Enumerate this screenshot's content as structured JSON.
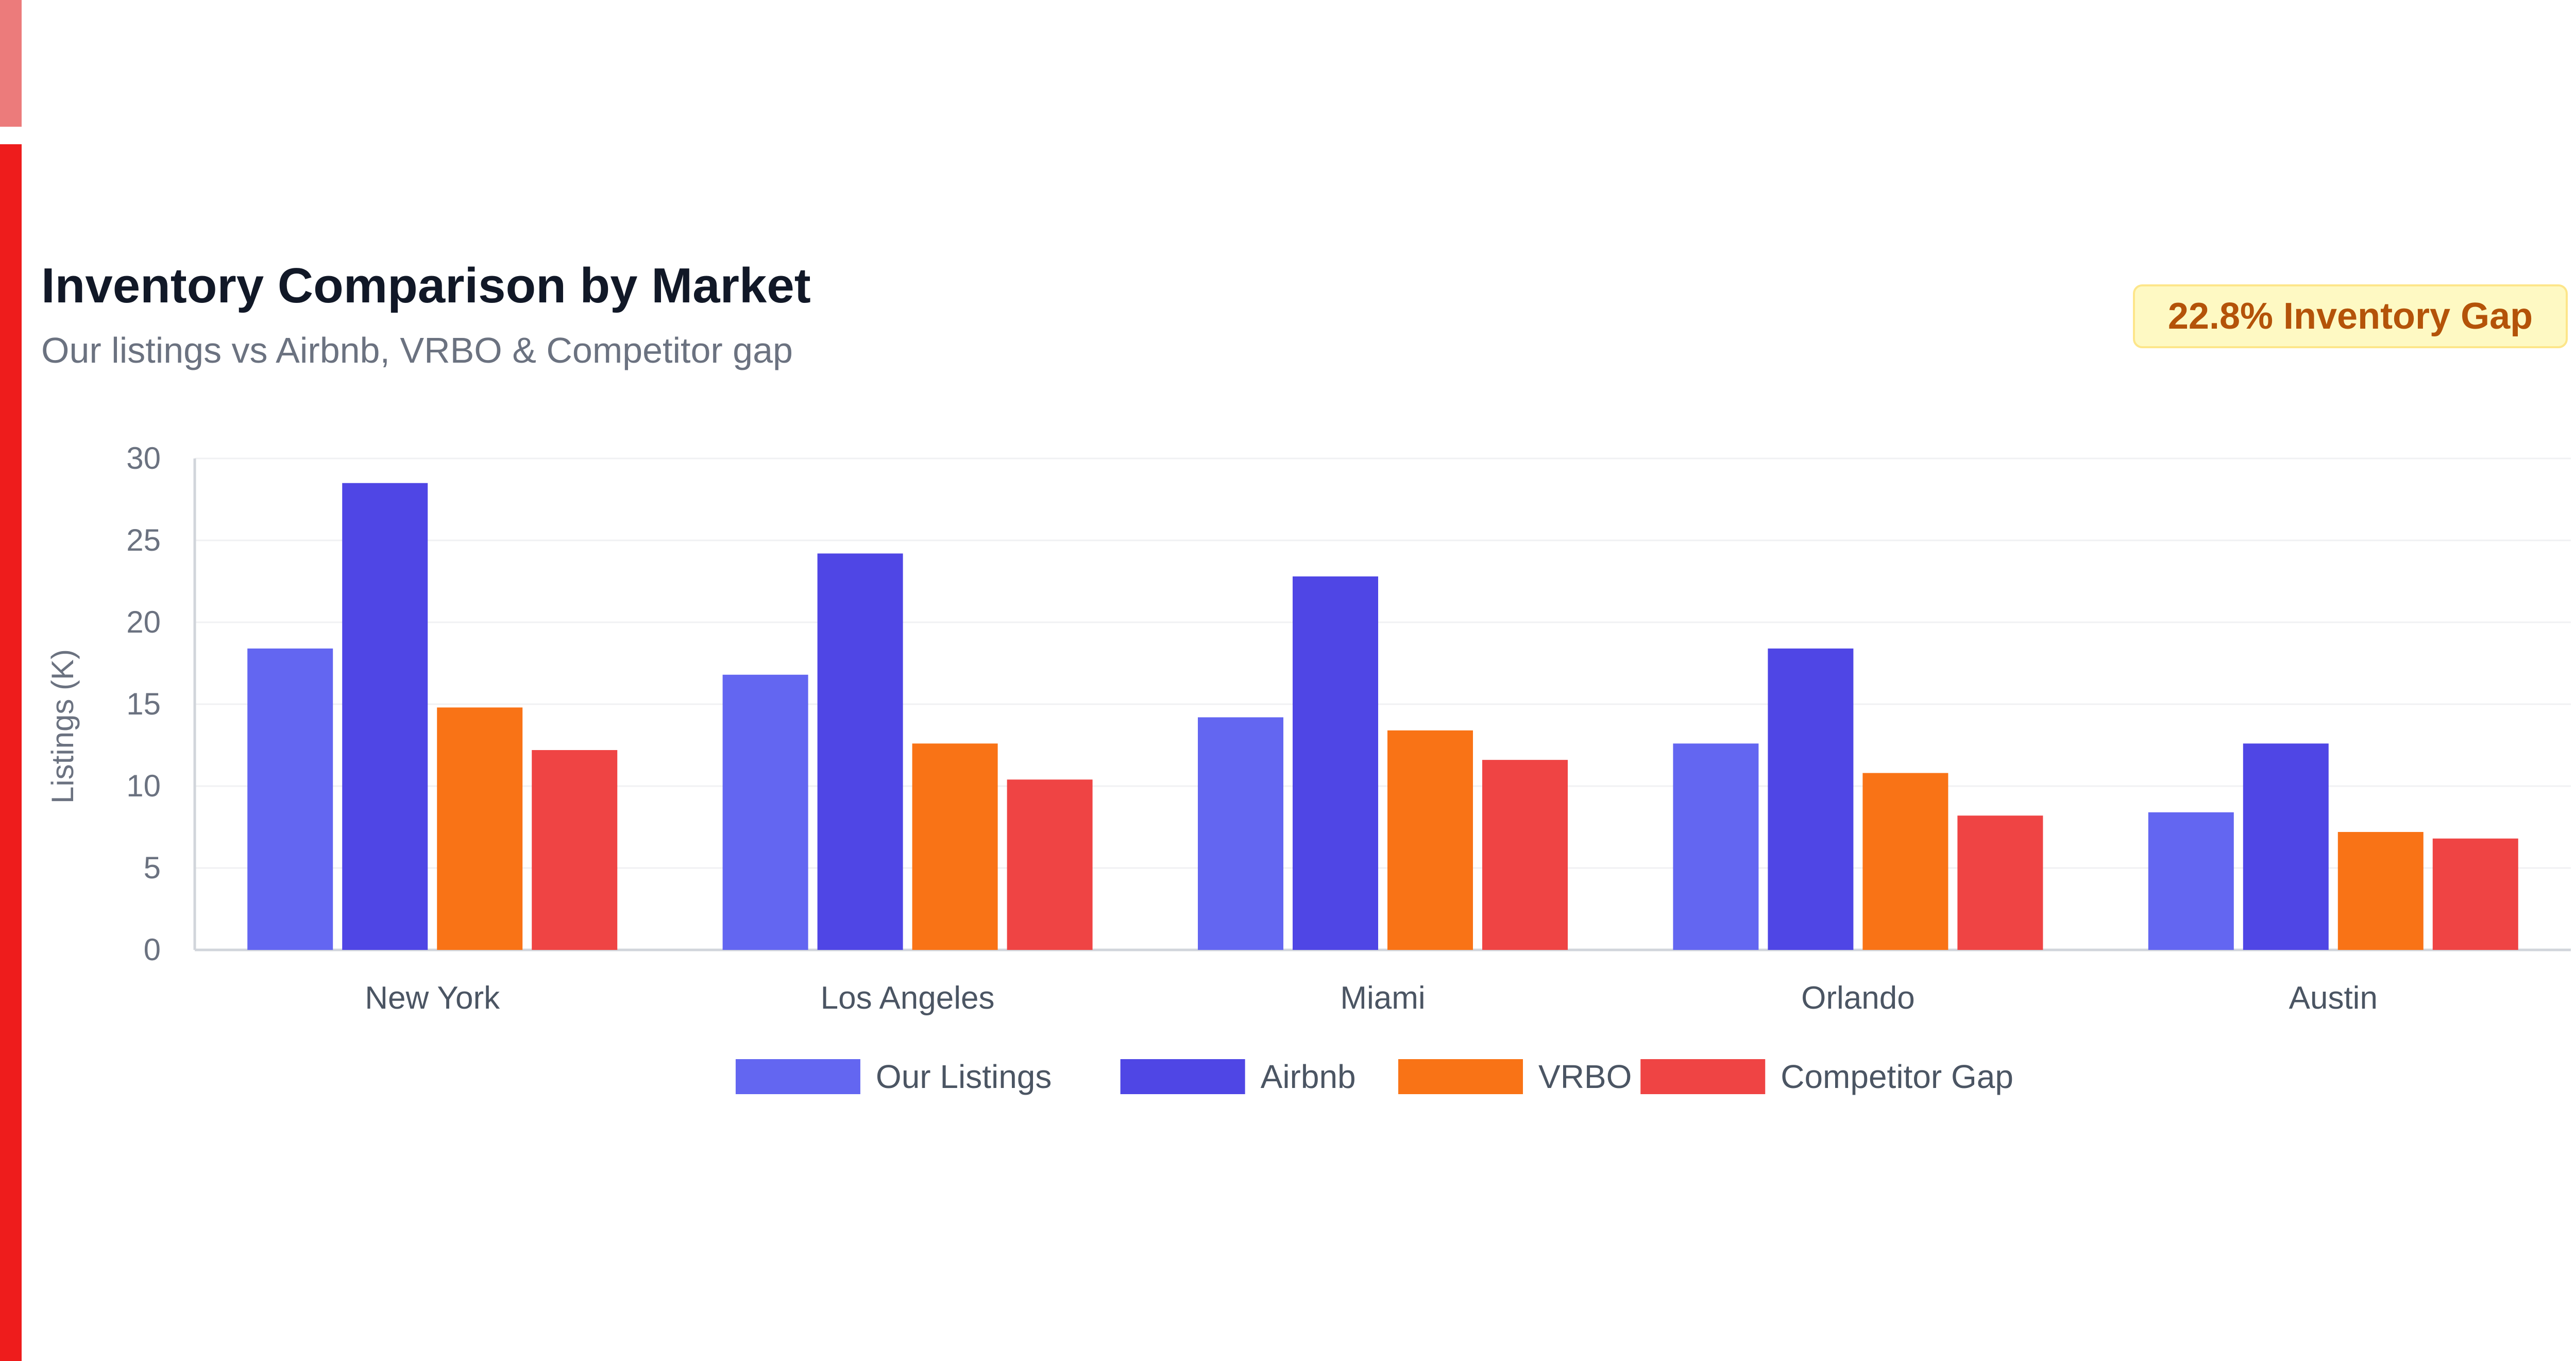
{
  "header": {
    "title": "Inventory Comparison by Market",
    "subtitle": "Our listings vs Airbnb, VRBO & Competitor gap",
    "badge": "22.8% Inventory Gap"
  },
  "colors": {
    "edge_top": "#ec7b7b",
    "edge_main": "#ee1c1c",
    "badge_bg": "#fef9c3",
    "badge_text": "#b45309"
  },
  "chart_data": {
    "type": "bar",
    "categories": [
      "New York",
      "Los Angeles",
      "Miami",
      "Orlando",
      "Austin"
    ],
    "series": [
      {
        "name": "Our Listings",
        "color": "#6366f1",
        "values": [
          18.4,
          16.8,
          14.2,
          12.6,
          8.4
        ]
      },
      {
        "name": "Airbnb",
        "color": "#4f46e5",
        "values": [
          28.5,
          24.2,
          22.8,
          18.4,
          12.6
        ]
      },
      {
        "name": "VRBO",
        "color": "#f97316",
        "values": [
          14.8,
          12.6,
          13.4,
          10.8,
          7.2
        ]
      },
      {
        "name": "Competitor Gap",
        "color": "#ef4444",
        "values": [
          12.2,
          10.4,
          11.6,
          8.2,
          6.8
        ]
      }
    ],
    "title": "Inventory Comparison by Market",
    "xlabel": "",
    "ylabel": "Listings (K)",
    "ylim": [
      0,
      30
    ],
    "yticks": [
      0,
      5,
      10,
      15,
      20,
      25,
      30
    ],
    "grid": true,
    "legend": "bottom"
  }
}
